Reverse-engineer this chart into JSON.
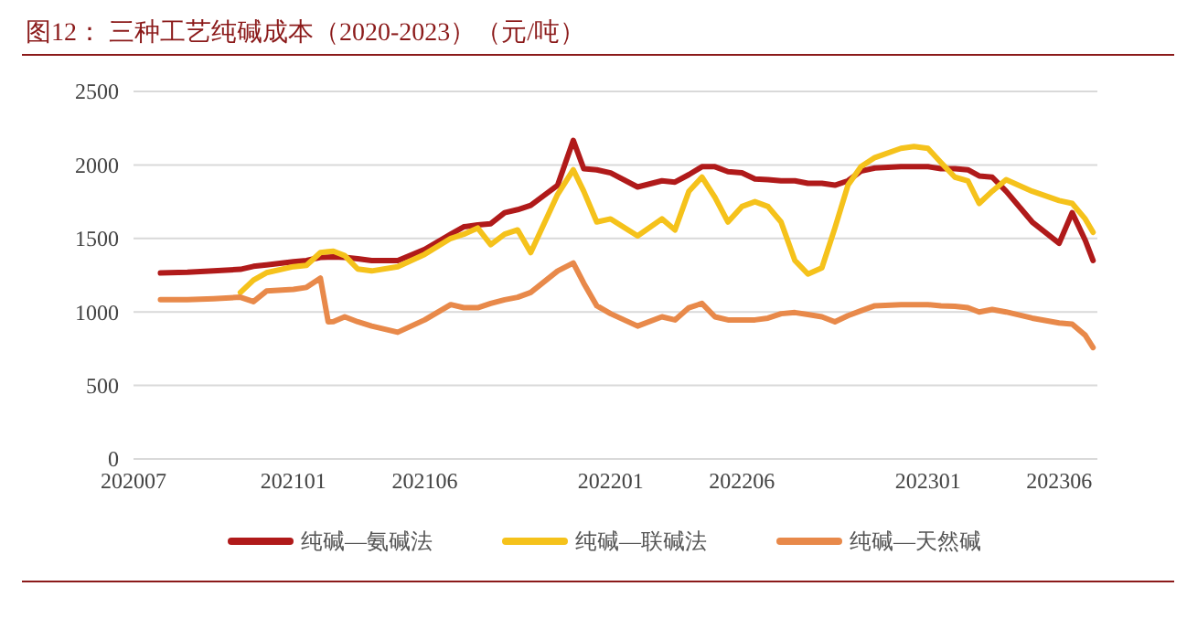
{
  "chart_data": {
    "type": "line",
    "title": "图12：  三种工艺纯碱成本（2020-2023）（元/吨）",
    "x": [
      "2020-08-01",
      "2020-09-01",
      "2020-10-01",
      "2020-11-01",
      "2020-11-16",
      "2020-12-01",
      "2021-01-01",
      "2021-01-16",
      "2021-02-01",
      "2021-02-10",
      "2021-02-16",
      "2021-03-01",
      "2021-03-16",
      "2021-04-01",
      "2021-05-01",
      "2021-06-01",
      "2021-07-01",
      "2021-07-16",
      "2021-08-01",
      "2021-08-16",
      "2021-09-01",
      "2021-09-16",
      "2021-10-01",
      "2021-11-01",
      "2021-11-19",
      "2021-12-01",
      "2021-12-16",
      "2022-01-01",
      "2022-02-01",
      "2022-03-01",
      "2022-03-16",
      "2022-04-01",
      "2022-04-16",
      "2022-05-01",
      "2022-05-16",
      "2022-06-01",
      "2022-06-16",
      "2022-07-01",
      "2022-07-16",
      "2022-08-01",
      "2022-08-16",
      "2022-09-01",
      "2022-09-16",
      "2022-10-01",
      "2022-10-16",
      "2022-11-01",
      "2022-12-01",
      "2022-12-16",
      "2023-01-01",
      "2023-01-16",
      "2023-02-01",
      "2023-02-16",
      "2023-03-01",
      "2023-03-16",
      "2023-04-01",
      "2023-05-01",
      "2023-06-01",
      "2023-06-16",
      "2023-07-01",
      "2023-07-10"
    ],
    "series": [
      {
        "name": "纯碱—氨碱法",
        "color": "#b01a1a",
        "values": [
          1265,
          1270,
          1280,
          1290,
          1310,
          1320,
          1342,
          1350,
          1371,
          1373,
          1375,
          1371,
          1362,
          1350,
          1350,
          1425,
          1529,
          1579,
          1592,
          1600,
          1675,
          1696,
          1725,
          1862,
          2167,
          1975,
          1967,
          1946,
          1850,
          1892,
          1883,
          1934,
          1988,
          1988,
          1954,
          1946,
          1904,
          1900,
          1892,
          1892,
          1875,
          1875,
          1862,
          1892,
          1958,
          1979,
          1988,
          1988,
          1988,
          1975,
          1975,
          1967,
          1925,
          1917,
          1821,
          1612,
          1467,
          1675,
          1488,
          1350
        ]
      },
      {
        "name": "纯碱—联碱法",
        "color": "#f5c21b",
        "values": [
          null,
          null,
          null,
          1133,
          1217,
          1267,
          1308,
          1317,
          1404,
          1410,
          1413,
          1383,
          1292,
          1279,
          1308,
          1392,
          1500,
          1529,
          1571,
          1458,
          1529,
          1558,
          1404,
          1800,
          1967,
          1821,
          1612,
          1633,
          1517,
          1633,
          1558,
          1821,
          1917,
          1779,
          1612,
          1717,
          1750,
          1717,
          1612,
          1350,
          1258,
          1300,
          1571,
          1862,
          1988,
          2050,
          2113,
          2125,
          2113,
          2017,
          1917,
          1892,
          1738,
          1821,
          1900,
          1821,
          1758,
          1738,
          1633,
          1542
        ]
      },
      {
        "name": "纯碱—天然碱",
        "color": "#e8894a",
        "values": [
          1083,
          1083,
          1090,
          1100,
          1070,
          1142,
          1154,
          1167,
          1230,
          933,
          935,
          967,
          933,
          904,
          862,
          946,
          1050,
          1029,
          1029,
          1058,
          1083,
          1100,
          1133,
          1279,
          1333,
          1196,
          1042,
          988,
          904,
          967,
          946,
          1029,
          1058,
          967,
          946,
          946,
          946,
          958,
          988,
          996,
          983,
          967,
          933,
          975,
          1008,
          1042,
          1050,
          1050,
          1050,
          1042,
          1038,
          1029,
          1000,
          1017,
          1000,
          958,
          925,
          917,
          842,
          758
        ]
      }
    ],
    "xlim": [
      "2020-07-01",
      "2023-07-15"
    ],
    "xticks": [
      {
        "value": "2020-07",
        "label": "202007"
      },
      {
        "value": "2021-01",
        "label": "202101"
      },
      {
        "value": "2021-06",
        "label": "202106"
      },
      {
        "value": "2022-01",
        "label": "202201"
      },
      {
        "value": "2022-06",
        "label": "202206"
      },
      {
        "value": "2023-01",
        "label": "202301"
      },
      {
        "value": "2023-06",
        "label": "202306"
      }
    ],
    "ylim": [
      0,
      2500
    ],
    "yticks": [
      0,
      500,
      1000,
      1500,
      2000,
      2500
    ],
    "grid": "y",
    "legend": "bottom",
    "marker": "none",
    "line_style": "solid"
  }
}
